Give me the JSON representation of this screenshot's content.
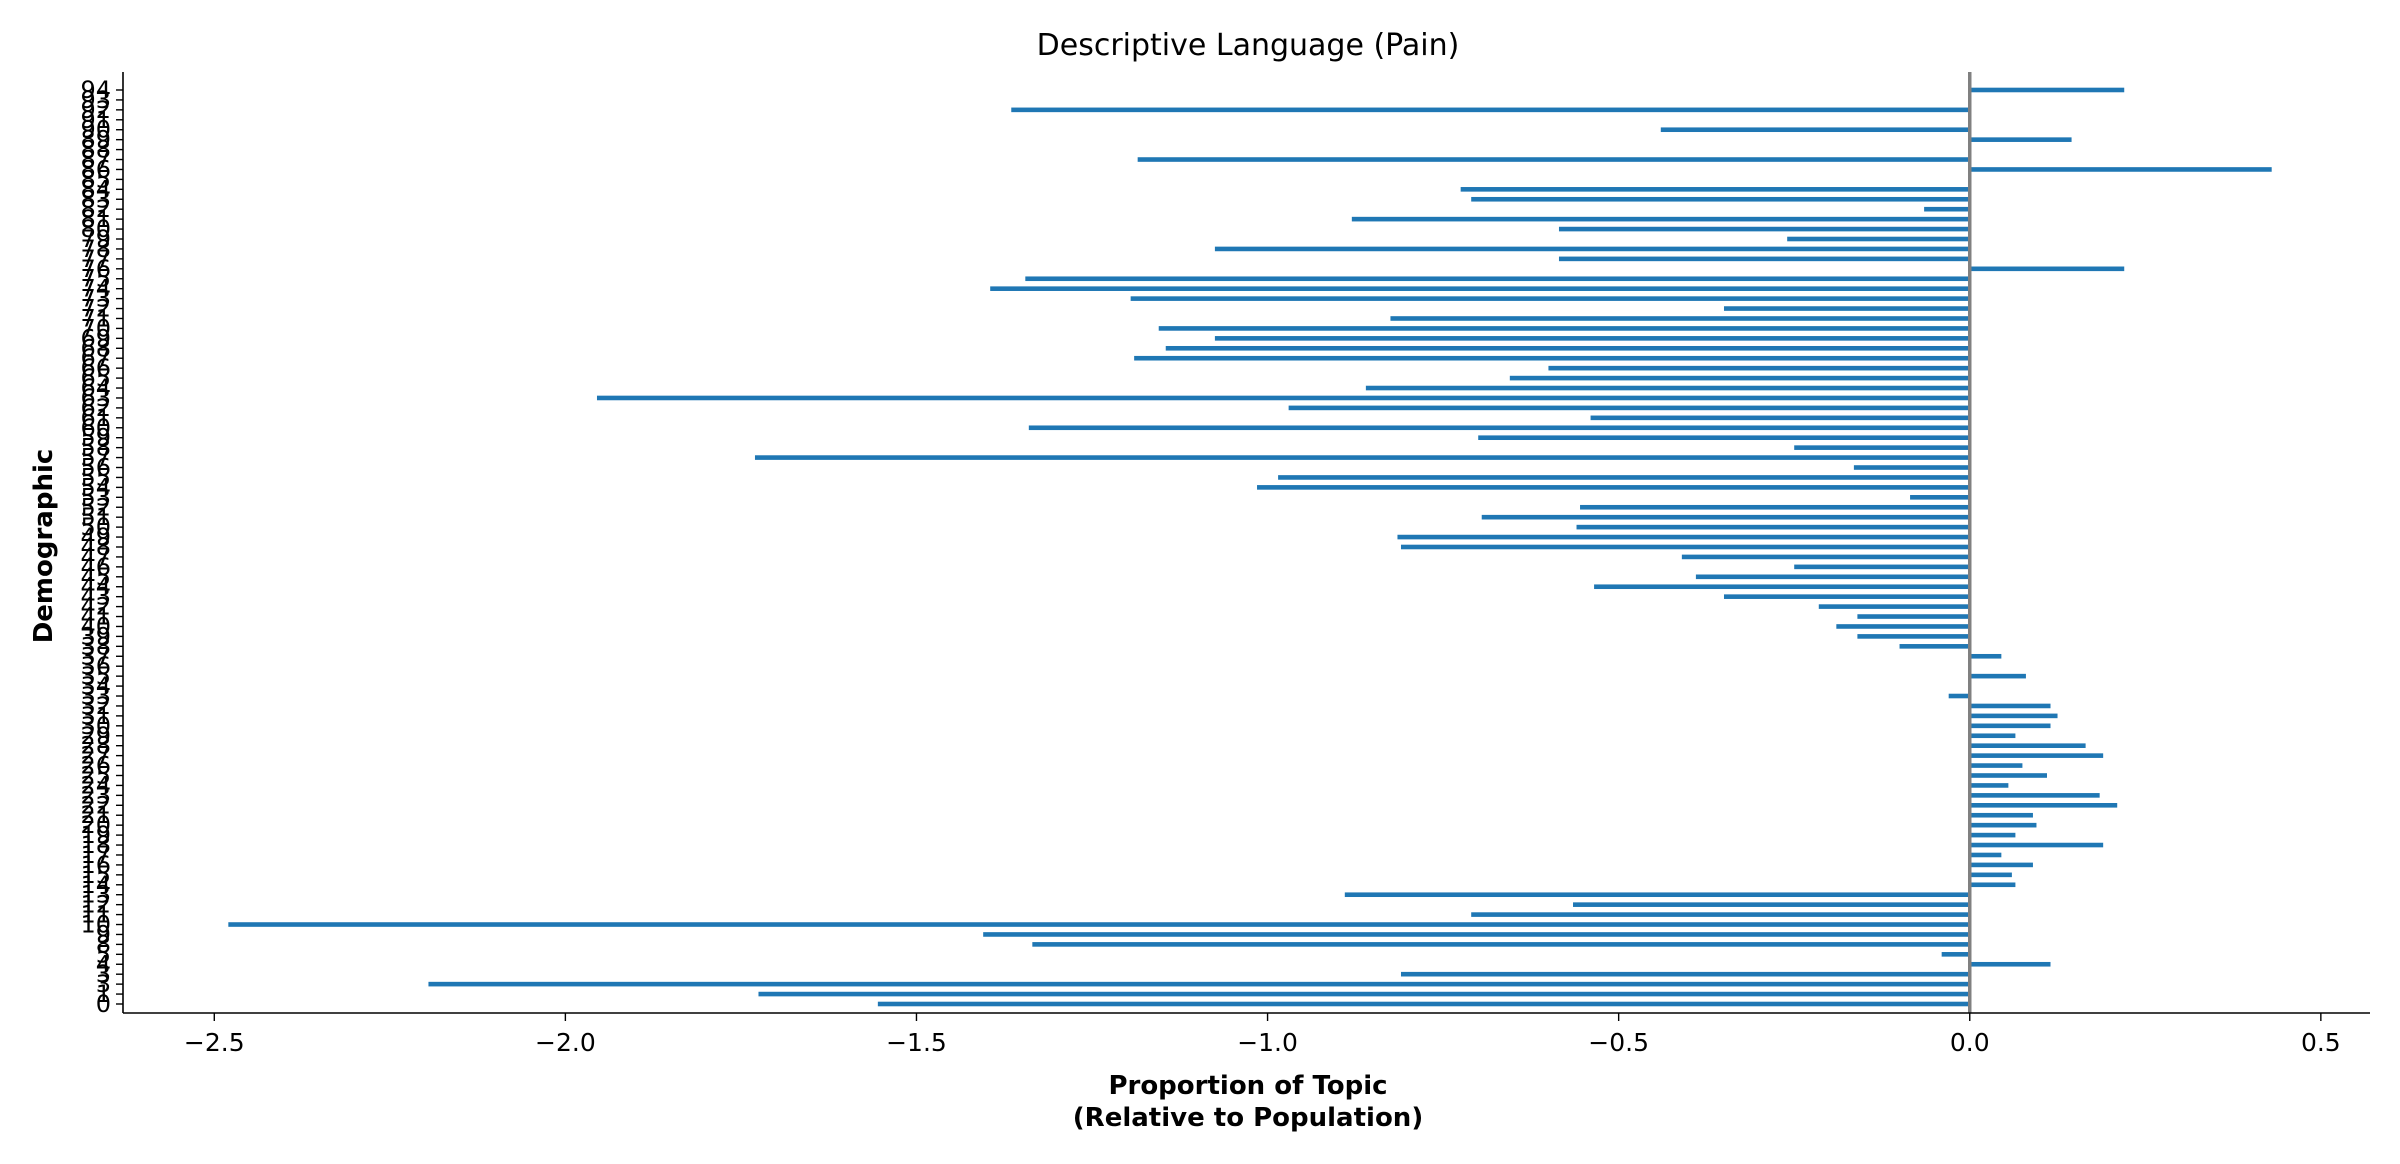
{
  "chart_data": {
    "type": "bar",
    "orientation": "horizontal",
    "title": "Descriptive Language (Pain)",
    "xlabel_line1": "Proportion of Topic",
    "xlabel_line2": "(Relative to Population)",
    "ylabel": "Demographic",
    "xlim": [
      -2.63,
      0.57
    ],
    "xticks": [
      -2.5,
      -2.0,
      -1.5,
      -1.0,
      -0.5,
      0.0,
      0.5
    ],
    "xtick_labels": [
      "−2.5",
      "−2.0",
      "−1.5",
      "−1.0",
      "−0.5",
      "0.0",
      "0.5"
    ],
    "bar_color": "#1f77b4",
    "zero_line_color": "#808080",
    "categories": [
      "0",
      "1",
      "3",
      "3",
      "4",
      "5",
      "8",
      "9",
      "10",
      "11",
      "12",
      "13",
      "14",
      "15",
      "16",
      "17",
      "18",
      "19",
      "20",
      "21",
      "22",
      "23",
      "24",
      "25",
      "26",
      "27",
      "28",
      "29",
      "30",
      "31",
      "32",
      "33",
      "34",
      "35",
      "36",
      "37",
      "38",
      "39",
      "40",
      "41",
      "42",
      "43",
      "44",
      "45",
      "46",
      "47",
      "48",
      "49",
      "50",
      "51",
      "52",
      "53",
      "54",
      "55",
      "56",
      "57",
      "58",
      "59",
      "60",
      "61",
      "62",
      "63",
      "64",
      "65",
      "66",
      "67",
      "68",
      "69",
      "70",
      "71",
      "72",
      "73",
      "74",
      "75",
      "76",
      "77",
      "78",
      "79",
      "80",
      "81",
      "82",
      "83",
      "84",
      "85",
      "86",
      "87",
      "88",
      "89",
      "90",
      "91",
      "92",
      "93",
      "94"
    ],
    "values": [
      -1.555,
      -1.725,
      -2.195,
      -0.81,
      0.115,
      -0.04,
      -1.335,
      -1.405,
      -2.48,
      -0.71,
      -0.565,
      -0.89,
      0.065,
      0.06,
      0.09,
      0.045,
      0.19,
      0.065,
      0.095,
      0.09,
      0.21,
      0.185,
      0.055,
      0.11,
      0.075,
      0.19,
      0.165,
      0.065,
      0.115,
      0.125,
      0.115,
      -0.03,
      0.0,
      0.08,
      0.0,
      0.045,
      -0.1,
      -0.16,
      -0.19,
      -0.16,
      -0.215,
      -0.35,
      -0.535,
      -0.39,
      -0.25,
      -0.41,
      -0.81,
      -0.815,
      -0.56,
      -0.695,
      -0.555,
      -0.085,
      -1.015,
      -0.985,
      -0.165,
      -1.73,
      -0.25,
      -0.7,
      -1.34,
      -0.54,
      -0.97,
      -1.955,
      -0.86,
      -0.655,
      -0.6,
      -1.19,
      -1.145,
      -1.075,
      -1.155,
      -0.825,
      -0.35,
      -1.195,
      -1.395,
      -1.345,
      0.22,
      -0.585,
      -1.075,
      -0.26,
      -0.585,
      -0.88,
      -0.065,
      -0.71,
      -0.725,
      0.0,
      0.43,
      -1.185,
      0.0,
      0.145,
      -0.44,
      0.0,
      -1.365,
      0.0,
      0.22
    ],
    "ytick_labels": [
      "0",
      "1",
      "3",
      "3",
      "4",
      "5",
      "8",
      "9",
      "10",
      "11",
      "12",
      "13",
      "14",
      "15",
      "16",
      "17",
      "18",
      "19",
      "20",
      "21",
      "22",
      "23",
      "24",
      "25",
      "26",
      "27",
      "28",
      "29",
      "30",
      "31",
      "32",
      "33",
      "34",
      "35",
      "36",
      "37",
      "38",
      "39",
      "40",
      "41",
      "42",
      "43",
      "44",
      "45",
      "46",
      "47",
      "48",
      "49",
      "50",
      "51",
      "52",
      "53",
      "54",
      "55",
      "56",
      "57",
      "58",
      "59",
      "60",
      "61",
      "62",
      "63",
      "64",
      "65",
      "66",
      "67",
      "68",
      "69",
      "70",
      "71",
      "72",
      "73",
      "74",
      "75",
      "76",
      "77",
      "78",
      "79",
      "80",
      "81",
      "82",
      "83",
      "84",
      "85",
      "86",
      "87",
      "88",
      "89",
      "90",
      "91",
      "92",
      "93",
      "94"
    ],
    "grid": false,
    "legend": "none"
  }
}
